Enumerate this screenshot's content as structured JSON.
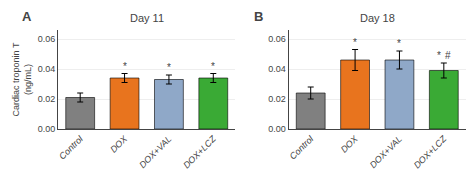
{
  "chart_data": [
    {
      "type": "bar",
      "title": "Day 11",
      "label": "A",
      "categories": [
        "Control",
        "DOX",
        "DOX+VAL",
        "DOX+LCZ"
      ],
      "values": [
        0.021,
        0.034,
        0.033,
        0.034
      ],
      "errors": [
        0.003,
        0.003,
        0.003,
        0.003
      ],
      "colors": [
        "#808080",
        "#E8741E",
        "#8fa8c8",
        "#3aaa35"
      ],
      "annotations": [
        {
          "category": "DOX",
          "text": "*"
        },
        {
          "category": "DOX+VAL",
          "text": "*"
        },
        {
          "category": "DOX+LCZ",
          "text": "*"
        }
      ],
      "ylim": [
        0,
        0.066
      ],
      "yticks": [
        {
          "value": 0,
          "label": "0.00"
        },
        0.02,
        0.04,
        0.06
      ],
      "ylabel": "Cardiac troponin T\n(ng/mL)"
    },
    {
      "type": "bar",
      "title": "Day 18",
      "label": "B",
      "categories": [
        "Control",
        "DOX",
        "DOX+VAL",
        "DOX+LCZ"
      ],
      "values": [
        0.024,
        0.046,
        0.046,
        0.039
      ],
      "errors": [
        0.004,
        0.007,
        0.006,
        0.005
      ],
      "colors": [
        "#808080",
        "#E8741E",
        "#8fa8c8",
        "#3aaa35"
      ],
      "annotations": [
        {
          "category": "DOX",
          "text": "*"
        },
        {
          "category": "DOX+VAL",
          "text": "*"
        },
        {
          "category": "DOX+LCZ",
          "text": "*"
        },
        {
          "category": "DOX+LCZ",
          "text": "#"
        }
      ],
      "ylim": [
        0,
        0.066
      ],
      "yticks": [
        {
          "value": 0,
          "label": "0.00"
        },
        0.02,
        0.04,
        0.06
      ]
    }
  ]
}
